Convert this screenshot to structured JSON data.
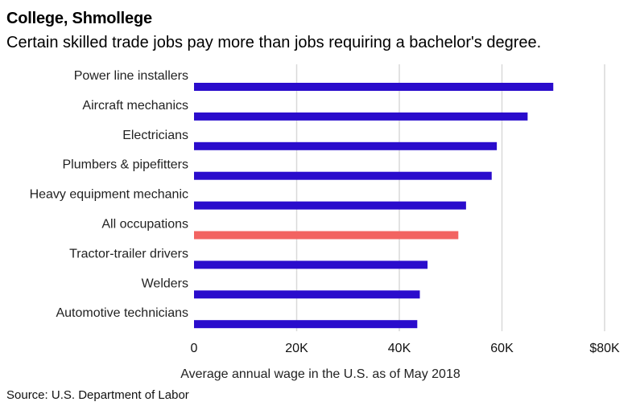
{
  "header": {
    "title": "College, Shmollege",
    "subtitle": "Certain skilled trade jobs pay more than jobs requiring a bachelor's degree."
  },
  "footer": {
    "source": "Source: U.S. Department of Labor"
  },
  "colors": {
    "bar": "#2a0ccc",
    "highlight": "#f26361",
    "grid": "#d9d9d9"
  },
  "chart_data": {
    "type": "bar",
    "orientation": "horizontal",
    "categories": [
      "Power line installers",
      "Aircraft mechanics",
      "Electricians",
      "Plumbers & pipefitters",
      "Heavy equipment mechanic",
      "All occupations",
      "Tractor-trailer drivers",
      "Welders",
      "Automotive technicians"
    ],
    "values": [
      70000,
      65000,
      59000,
      58000,
      53000,
      51500,
      45500,
      44000,
      43500
    ],
    "highlight_category": "All occupations",
    "xlim": [
      0,
      80000
    ],
    "xticks": [
      0,
      20000,
      40000,
      60000,
      80000
    ],
    "xtick_labels": [
      "0",
      "20K",
      "40K",
      "60K",
      "$80K"
    ],
    "xlabel": "Average annual wage in the U.S. as of May 2018",
    "grid": true
  }
}
